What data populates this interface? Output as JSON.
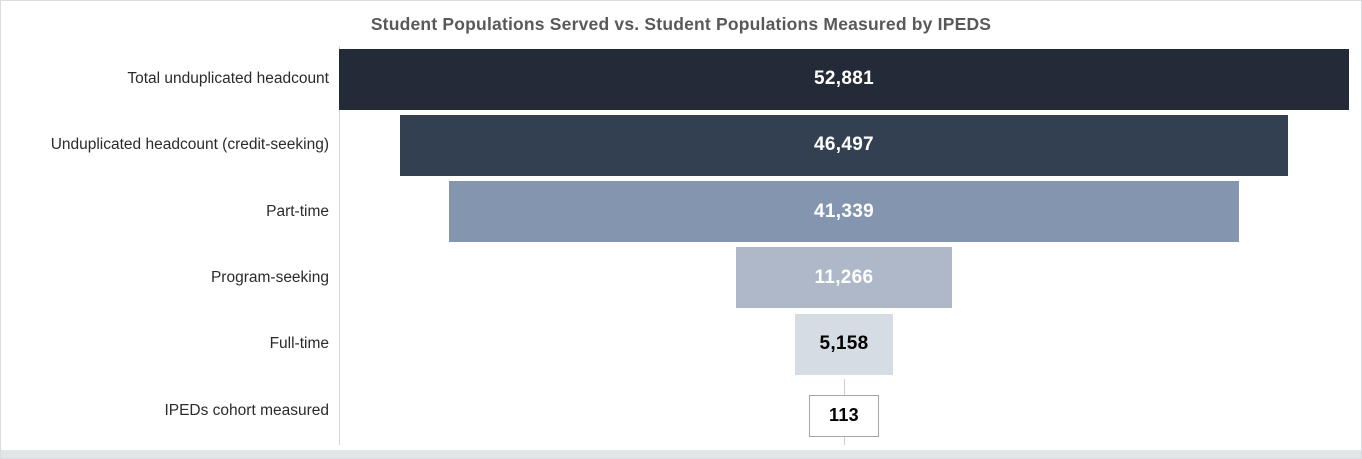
{
  "title": "Student Populations Served vs. Student Populations Measured by IPEDS",
  "chart_data": {
    "type": "bar",
    "variant": "funnel",
    "title": "Student Populations Served vs. Student Populations Measured by IPEDS",
    "categories": [
      "Total unduplicated headcount",
      "Unduplicated headcount (credit-seeking)",
      "Part-time",
      "Program-seeking",
      "Full-time",
      "IPEDs cohort measured"
    ],
    "values": [
      52881,
      46497,
      41339,
      11266,
      5158,
      113
    ],
    "value_labels": [
      "52,881",
      "46,497",
      "41,339",
      "11,266",
      "5,158",
      "113"
    ],
    "xlim": [
      0,
      52881
    ],
    "grid": "off",
    "legend": "none",
    "bar_colors": [
      "#222b37",
      "#334052",
      "#8496af",
      "#aeb8c8",
      "#d6dce4",
      "#ffffff"
    ],
    "value_label_colors": [
      "#ffffff",
      "#ffffff",
      "#ffffff",
      "#ffffff",
      "#000000",
      "#000000"
    ],
    "axis_line_color": "#d6d6d6",
    "title_color": "#595959"
  }
}
